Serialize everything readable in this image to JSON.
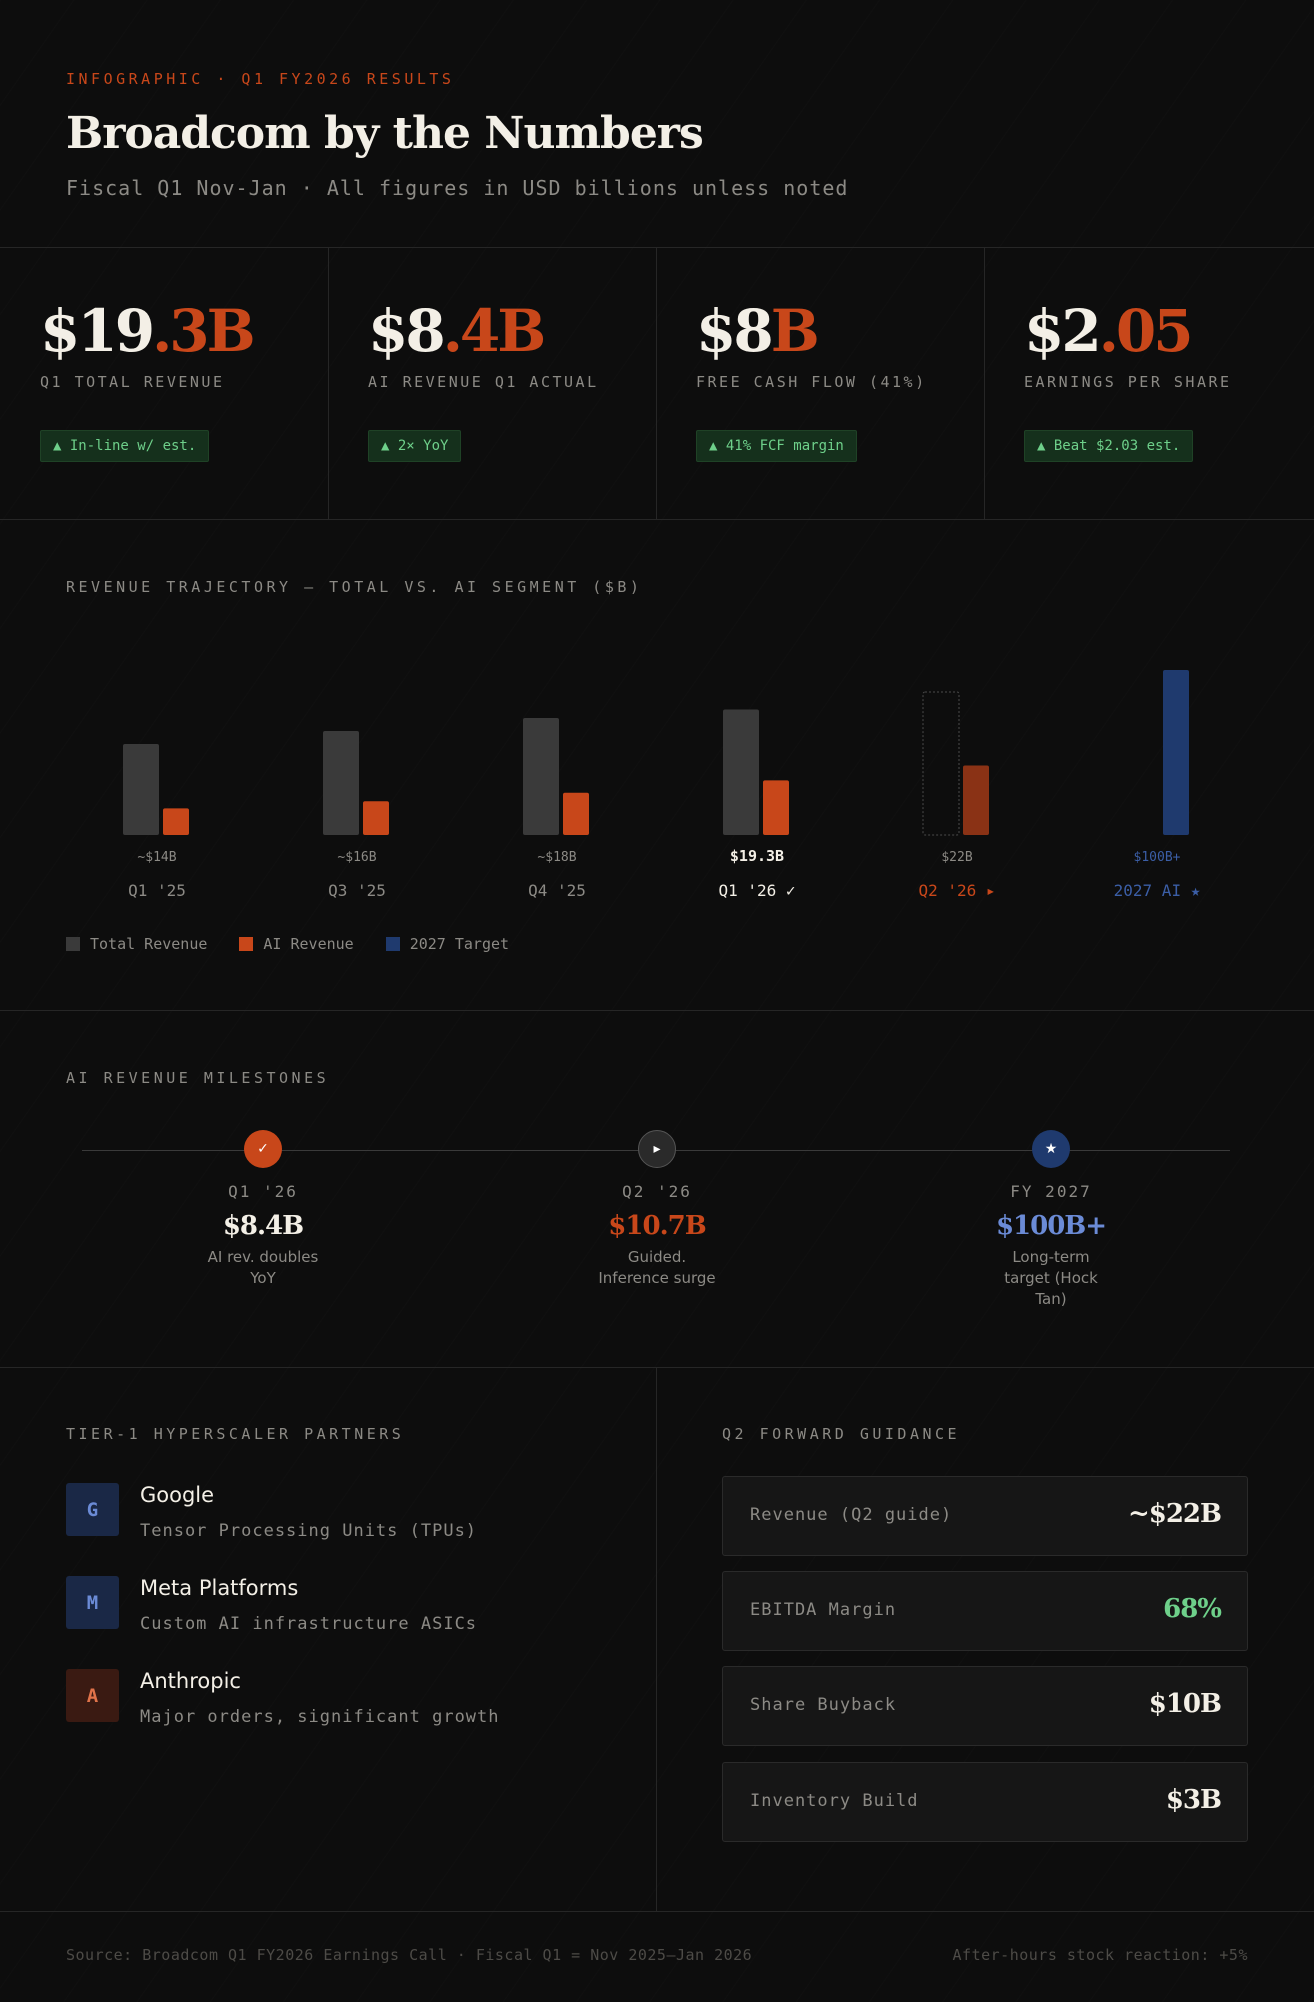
{
  "header": {
    "eyebrow": "INFOGRAPHIC · Q1 FY2026 RESULTS",
    "title": "Broadcom by the Numbers",
    "subtitle": "Fiscal Q1 Nov-Jan · All figures in USD billions unless noted"
  },
  "kpis": [
    {
      "value_main": "$19",
      "value_accent": ".3B",
      "label": "Q1 TOTAL REVENUE",
      "badge": "▲ In-line w/ est."
    },
    {
      "value_main": "$8",
      "value_accent": ".4B",
      "label": "AI REVENUE Q1 ACTUAL",
      "badge": "▲ 2× YoY"
    },
    {
      "value_main": "$8",
      "value_accent": "B",
      "label": "FREE CASH FLOW (41%)",
      "badge": "▲ 41% FCF margin"
    },
    {
      "value_main": "$2",
      "value_accent": ".05",
      "label": "EARNINGS PER SHARE",
      "badge": "▲ Beat $2.03 est."
    }
  ],
  "chart_data": {
    "type": "bar",
    "title": "REVENUE TRAJECTORY — TOTAL VS. AI SEGMENT ($B)",
    "categories": [
      "Q1 '25",
      "Q3 '25",
      "Q4 '25",
      "Q1 '26 ✓",
      "Q2 '26 ▸",
      "2027 AI ★"
    ],
    "value_labels": [
      "~$14B",
      "~$16B",
      "~$18B",
      "$19.3B",
      "$22B",
      "$100B+"
    ],
    "series": [
      {
        "name": "Total Revenue",
        "values": [
          14,
          16,
          18,
          19.3,
          22,
          null
        ]
      },
      {
        "name": "AI Revenue",
        "values": [
          4.1,
          5.2,
          6.5,
          8.4,
          10.7,
          null
        ]
      },
      {
        "name": "2027 Target",
        "values": [
          null,
          null,
          null,
          null,
          null,
          100
        ]
      }
    ],
    "legend": [
      "Total Revenue",
      "AI Revenue",
      "2027 Target"
    ],
    "colors": {
      "total": "#3a3a3a",
      "ai": "#c8471a",
      "target": "#1f3a6e",
      "guided_total_outline": "#4a4a4a",
      "guided_ai": "#8a3215"
    }
  },
  "milestones": {
    "label": "AI REVENUE MILESTONES",
    "items": [
      {
        "icon": "✓",
        "quarter": "Q1 '26",
        "value": "$8.4B",
        "desc": "AI rev. doubles YoY",
        "color": "#c8471a",
        "value_color": "#f3efe6"
      },
      {
        "icon": "▸",
        "quarter": "Q2 '26",
        "value": "$10.7B",
        "desc": "Guided. Inference surge",
        "color": "#2a2a2a",
        "value_color": "#c8471a"
      },
      {
        "icon": "★",
        "quarter": "FY 2027",
        "value": "$100B+",
        "desc": "Long-term target (Hock Tan)",
        "color": "#1f3a6e",
        "value_color": "#6b8bd6"
      }
    ]
  },
  "partners": {
    "label": "TIER-1 HYPERSCALER PARTNERS",
    "items": [
      {
        "initial": "G",
        "name": "Google",
        "desc": "Tensor Processing Units (TPUs)"
      },
      {
        "initial": "M",
        "name": "Meta Platforms",
        "desc": "Custom AI infrastructure ASICs"
      },
      {
        "initial": "A",
        "name": "Anthropic",
        "desc": "Major orders, significant growth"
      }
    ]
  },
  "guidance": {
    "label": "Q2 FORWARD GUIDANCE",
    "items": [
      {
        "label": "Revenue (Q2 guide)",
        "value": "~$22B"
      },
      {
        "label": "EBITDA Margin",
        "value": "68%"
      },
      {
        "label": "Share Buyback",
        "value": "$10B"
      },
      {
        "label": "Inventory Build",
        "value": "$3B"
      }
    ]
  },
  "footer": {
    "source": "Source: Broadcom Q1 FY2026 Earnings Call · Fiscal Q1 = Nov 2025–Jan 2026",
    "reaction": "After-hours stock reaction: +5%"
  }
}
